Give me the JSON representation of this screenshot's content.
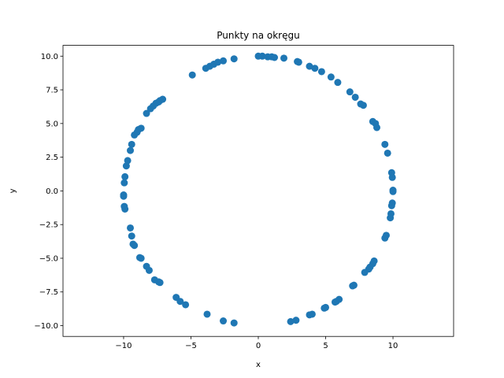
{
  "chart_data": {
    "type": "scatter",
    "title": "Punkty na okręgu",
    "xlabel": "x",
    "ylabel": "y",
    "xlim": [
      -14.5,
      14.5
    ],
    "ylim": [
      -10.8,
      10.8
    ],
    "x_ticks": [
      -10,
      -5,
      0,
      5,
      10
    ],
    "x_tick_labels": [
      "−10",
      "−5",
      "0",
      "5",
      "10"
    ],
    "y_ticks": [
      -10,
      -7.5,
      -5,
      -2.5,
      0,
      2.5,
      5,
      7.5,
      10
    ],
    "y_tick_labels": [
      "−10.0",
      "−7.5",
      "−5.0",
      "−2.5",
      "0.0",
      "2.5",
      "5.0",
      "7.5",
      "10.0"
    ],
    "grid": false,
    "marker_color": "#1f77b4",
    "points": {
      "x": [
        0.0,
        0.3,
        0.7,
        1.0,
        1.2,
        1.9,
        2.9,
        3.0,
        3.8,
        4.2,
        4.7,
        5.4,
        5.9,
        6.8,
        7.2,
        7.6,
        7.8,
        8.5,
        8.7,
        8.8,
        9.4,
        9.6,
        9.9,
        9.95,
        10.0,
        10.0,
        9.95,
        9.9,
        9.85,
        9.8,
        9.5,
        9.4,
        8.6,
        8.5,
        8.3,
        8.2,
        7.9,
        7.1,
        7.0,
        6.0,
        5.8,
        5.7,
        5.0,
        4.9,
        4.0,
        3.8,
        2.8,
        2.4,
        -1.8,
        -2.6,
        -3.8,
        -5.4,
        -5.8,
        -6.1,
        -7.3,
        -7.4,
        -7.7,
        -8.1,
        -8.3,
        -8.7,
        -8.8,
        -9.2,
        -9.3,
        -9.4,
        -9.5,
        -9.9,
        -9.95,
        -10.0,
        -9.95,
        -9.9,
        -10.0,
        -9.8,
        -9.7,
        -9.5,
        -9.4,
        -9.2,
        -9.0,
        -8.9,
        -8.7,
        -8.3,
        -8.0,
        -7.8,
        -7.6,
        -7.4,
        -7.3,
        -7.1,
        -4.9,
        -3.9,
        -3.6,
        -3.3,
        -3.0,
        -2.6,
        -1.8
      ],
      "y": [
        10.0,
        10.0,
        9.95,
        9.95,
        9.9,
        9.85,
        9.6,
        9.55,
        9.25,
        9.1,
        8.85,
        8.45,
        8.05,
        7.35,
        6.95,
        6.45,
        6.35,
        5.15,
        5.0,
        4.7,
        3.45,
        2.8,
        1.35,
        1.0,
        0.05,
        -0.05,
        -0.9,
        -1.1,
        -1.7,
        -2.0,
        -3.3,
        -3.5,
        -5.2,
        -5.4,
        -5.65,
        -5.8,
        -6.05,
        -7.0,
        -7.05,
        -8.05,
        -8.2,
        -8.25,
        -8.65,
        -8.7,
        -9.15,
        -9.2,
        -9.6,
        -9.7,
        -9.8,
        -9.65,
        -9.15,
        -8.45,
        -8.2,
        -7.9,
        -6.8,
        -6.75,
        -6.6,
        -5.9,
        -5.6,
        -5.0,
        -4.95,
        -4.05,
        -3.95,
        -3.35,
        -2.75,
        -1.35,
        -1.15,
        -0.4,
        0.6,
        1.05,
        -0.3,
        1.85,
        2.25,
        3.0,
        3.45,
        4.15,
        4.35,
        4.55,
        4.65,
        5.75,
        6.1,
        6.3,
        6.5,
        6.6,
        6.7,
        6.8,
        8.6,
        9.1,
        9.25,
        9.4,
        9.55,
        9.65,
        9.8
      ]
    }
  }
}
